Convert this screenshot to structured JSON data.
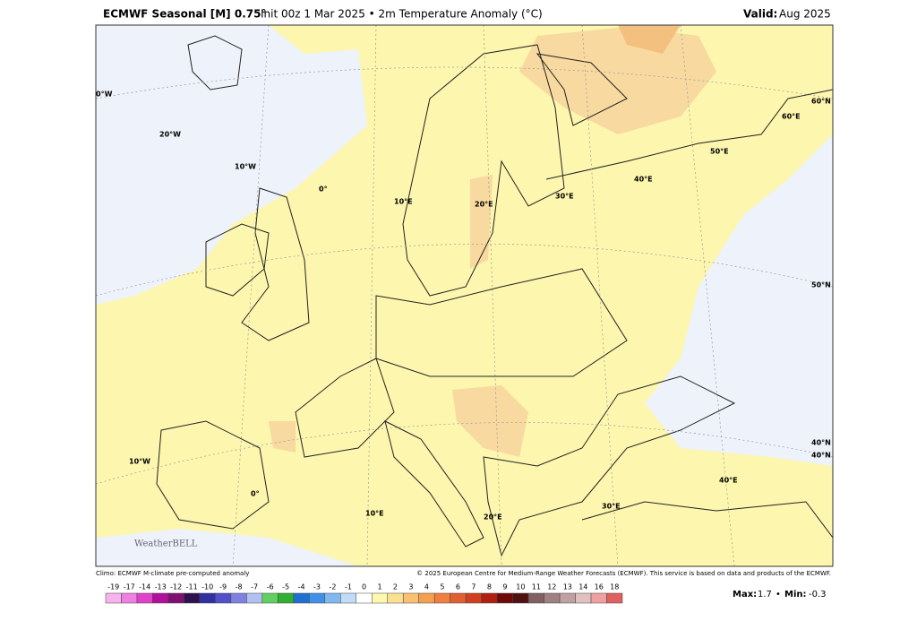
{
  "header": {
    "title_bold": "ECMWF Seasonal [M] 0.75°",
    "title_rest": "Init 00z 1 Mar 2025 • 2m Temperature Anomaly (°C)",
    "valid_label": "Valid:",
    "valid_value": "Aug 2025"
  },
  "map": {
    "graticule_labels": [
      "0°W",
      "20°W",
      "10°W",
      "0°",
      "10°E",
      "20°E",
      "30°E",
      "40°E",
      "50°E",
      "60°E",
      "60°N",
      "50°N",
      "40°N",
      "10°W",
      "0°",
      "10°E",
      "20°E",
      "30°E",
      "40°E",
      "40°N"
    ],
    "logo": "WeatherBELL"
  },
  "footer": {
    "climo": "Climo: ECMWF M-climate pre-computed anomaly",
    "copyright": "© 2025 European Centre for Medium-Range Weather Forecasts (ECMWF). This service is based on data and products of the ECMWF."
  },
  "colorbar": {
    "labels": [
      -19,
      -17,
      -14,
      -13,
      -12,
      -11,
      -10,
      -9,
      -8,
      -7,
      -6,
      -5,
      -4,
      -3,
      -2,
      -1,
      0,
      1,
      2,
      3,
      4,
      5,
      6,
      7,
      8,
      9,
      10,
      11,
      12,
      13,
      14,
      16,
      18
    ],
    "colors": [
      "#f7b3ee",
      "#ef7fe0",
      "#e040cc",
      "#b0109c",
      "#801070",
      "#301050",
      "#3030a0",
      "#5050c8",
      "#8080e0",
      "#b0c0f0",
      "#60d060",
      "#30b030",
      "#2070d0",
      "#4090e8",
      "#80b8f0",
      "#c0dcf8",
      "#ffffff",
      "#fdf8b0",
      "#fbe090",
      "#f8c070",
      "#f5a050",
      "#f08040",
      "#e06030",
      "#d04020",
      "#b02010",
      "#700808",
      "#501010",
      "#806060",
      "#a08080",
      "#c0a0a0",
      "#e0c0c0",
      "#f0a0a0",
      "#e06060"
    ]
  },
  "stats": {
    "max_label": "Max:",
    "max_value": 1.7,
    "sep": "•",
    "min_label": "Min:",
    "min_value": -0.3
  }
}
